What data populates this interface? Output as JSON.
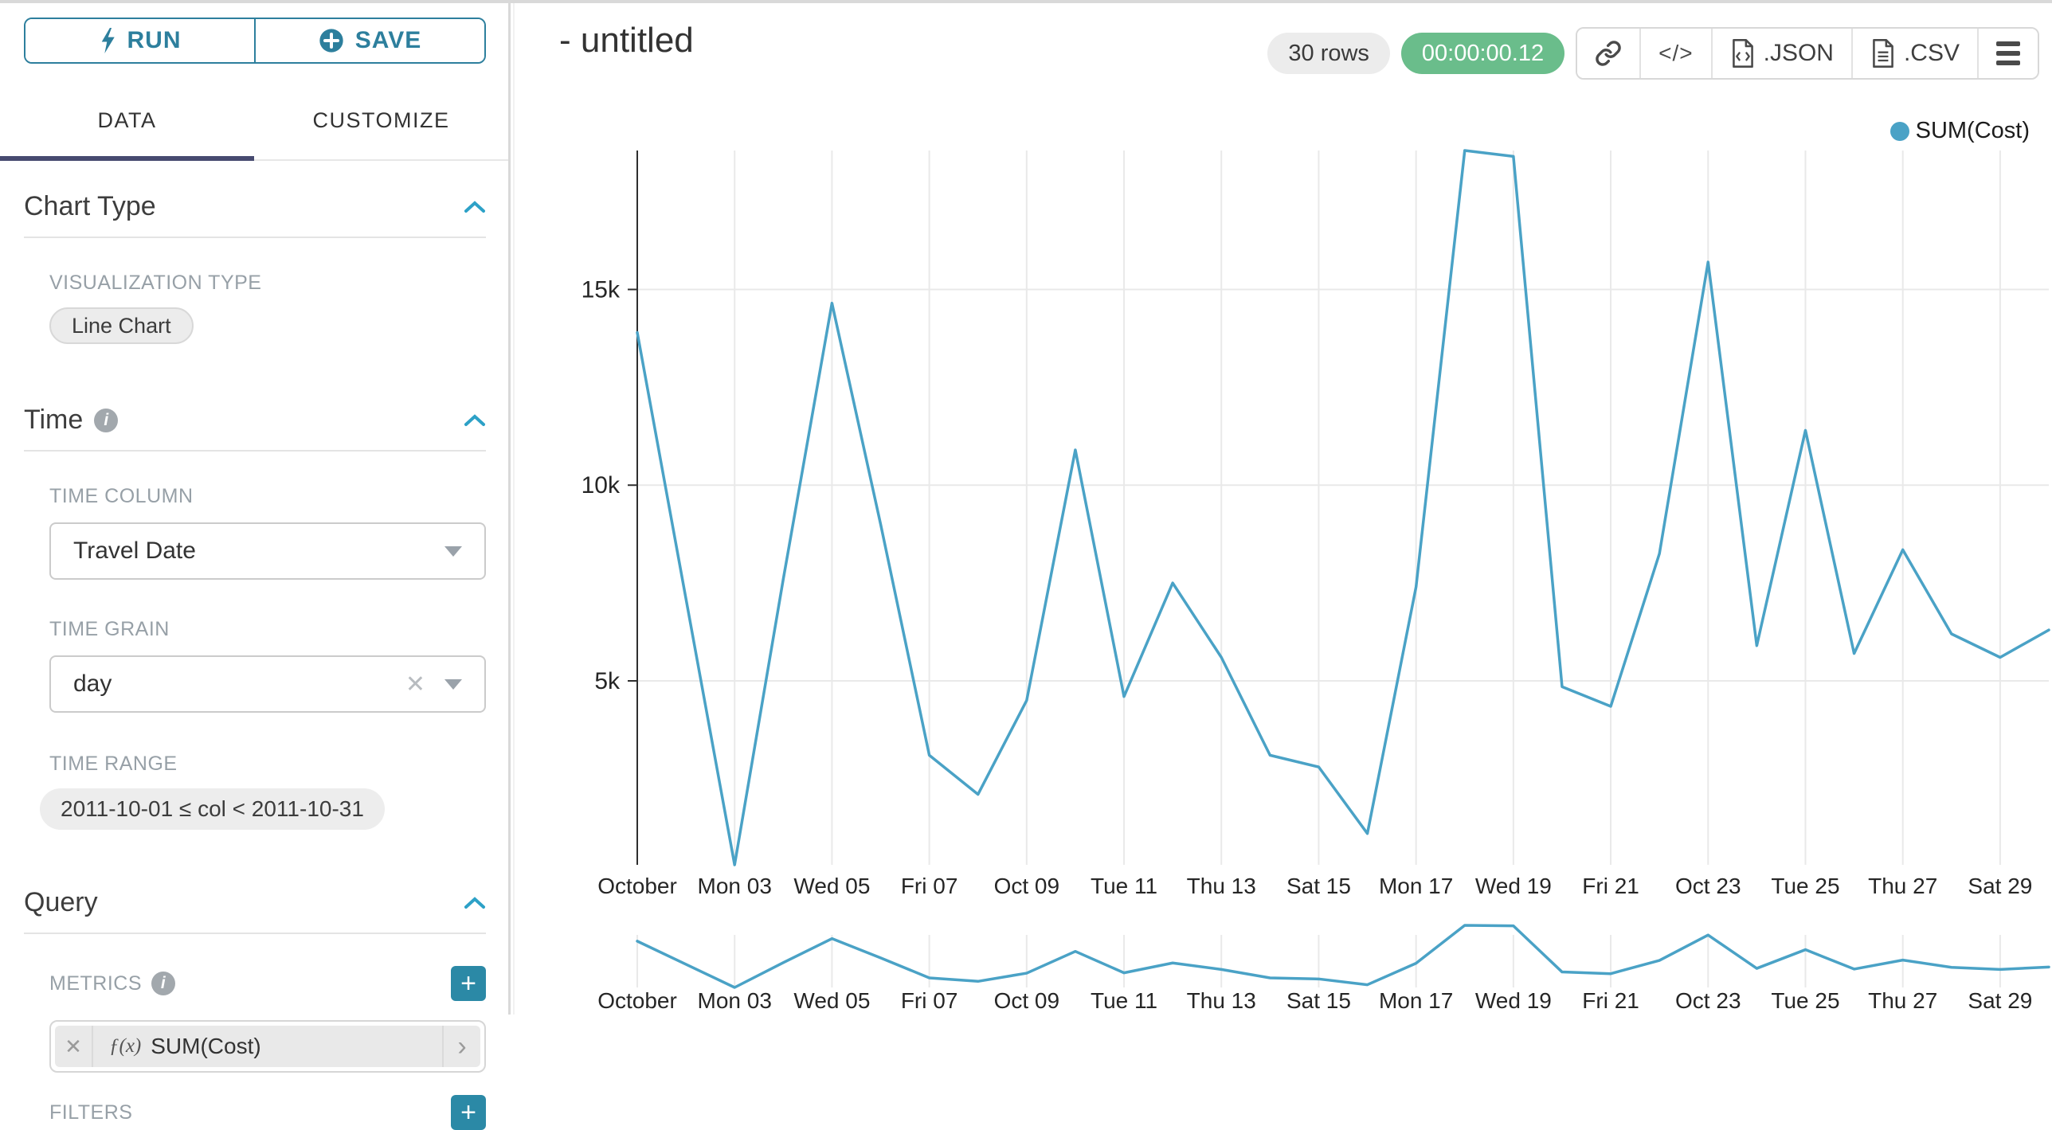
{
  "topbar": {
    "run_label": "RUN",
    "save_label": "SAVE"
  },
  "tabs": {
    "data_label": "DATA",
    "customize_label": "CUSTOMIZE"
  },
  "icons": {
    "plus": "+",
    "clear": "✕",
    "code": "</>",
    "chevron_right": "›"
  },
  "sections": {
    "chart_type": {
      "title": "Chart Type",
      "viz_label": "VISUALIZATION TYPE",
      "viz_value": "Line Chart"
    },
    "time": {
      "title": "Time",
      "column_label": "TIME COLUMN",
      "column_value": "Travel Date",
      "grain_label": "TIME GRAIN",
      "grain_value": "day",
      "range_label": "TIME RANGE",
      "range_value": "2011-10-01 ≤ col < 2011-10-31"
    },
    "query": {
      "title": "Query",
      "metrics_label": "METRICS",
      "metric_fx": "ƒ(x)",
      "metric_name": "SUM(Cost)",
      "filters_label": "FILTERS"
    }
  },
  "header": {
    "title": "- untitled",
    "rows_badge": "30 rows",
    "timer": "00:00:00.12",
    "json_label": ".JSON",
    "csv_label": ".CSV"
  },
  "legend": {
    "label": "SUM(Cost)"
  },
  "colors": {
    "accent": "#2d7f9d",
    "plus_button": "#2b89a6",
    "tab_underline": "#474a70",
    "timer_green": "#6abd8b",
    "series_line": "#4aa2c6"
  },
  "chart_data": {
    "type": "line",
    "title": "- untitled",
    "x": [
      "2011-10-01",
      "2011-10-02",
      "2011-10-03",
      "2011-10-04",
      "2011-10-05",
      "2011-10-06",
      "2011-10-07",
      "2011-10-08",
      "2011-10-09",
      "2011-10-10",
      "2011-10-11",
      "2011-10-12",
      "2011-10-13",
      "2011-10-14",
      "2011-10-15",
      "2011-10-16",
      "2011-10-17",
      "2011-10-18",
      "2011-10-19",
      "2011-10-20",
      "2011-10-21",
      "2011-10-22",
      "2011-10-23",
      "2011-10-24",
      "2011-10-25",
      "2011-10-26",
      "2011-10-27",
      "2011-10-28",
      "2011-10-29",
      "2011-10-30"
    ],
    "series": [
      {
        "name": "SUM(Cost)",
        "color": "#4aa2c6",
        "values": [
          13900,
          7100,
          300,
          7600,
          14650,
          9000,
          3100,
          2100,
          4500,
          10900,
          4600,
          7500,
          5600,
          3100,
          2800,
          1100,
          7400,
          18550,
          18400,
          4850,
          4350,
          8250,
          15700,
          5900,
          11400,
          5700,
          8350,
          6200,
          5600,
          6300
        ]
      }
    ],
    "x_tick_labels": [
      "October",
      "Mon 03",
      "Wed 05",
      "Fri 07",
      "Oct 09",
      "Tue 11",
      "Thu 13",
      "Sat 15",
      "Mon 17",
      "Wed 19",
      "Fri 21",
      "Oct 23",
      "Tue 25",
      "Thu 27",
      "Sat 29"
    ],
    "y_ticks": [
      5000,
      10000,
      15000
    ],
    "y_tick_labels": [
      "5k",
      "10k",
      "15k"
    ],
    "ylim": [
      300,
      18550
    ],
    "grid": true,
    "legend_position": "top-right",
    "has_context_mini_chart": true
  }
}
